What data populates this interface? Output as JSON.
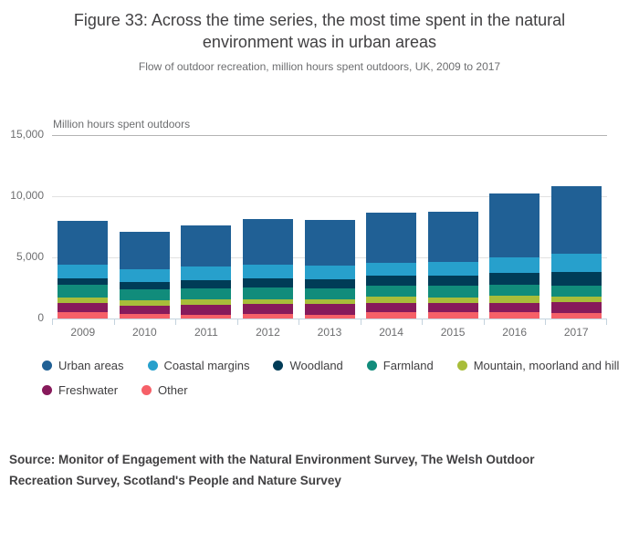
{
  "figure": {
    "title": "Figure 33: Across the time series, the most time spent in the natural environment was in urban areas",
    "subtitle": "Flow of outdoor recreation, million hours spent outdoors, UK, 2009 to 2017",
    "source": "Source: Monitor of Engagement with the Natural Environment Survey, The Welsh Outdoor Recreation Survey, Scotland's People and Nature Survey"
  },
  "chart_data": {
    "type": "bar",
    "stacked": true,
    "title": "Figure 33: Across the time series, the most time spent in the natural environment was in urban areas",
    "subtitle": "Flow of outdoor recreation, million hours spent outdoors, UK, 2009 to 2017",
    "unit_label": "Million hours spent outdoors",
    "categories": [
      "2009",
      "2010",
      "2011",
      "2012",
      "2013",
      "2014",
      "2015",
      "2016",
      "2017"
    ],
    "series": [
      {
        "name": "Urban areas",
        "color": "#206095",
        "values": [
          3600,
          3030,
          3360,
          3760,
          3740,
          4130,
          4130,
          5220,
          5570
        ]
      },
      {
        "name": "Coastal margins",
        "color": "#27a0cc",
        "values": [
          1120,
          1050,
          1070,
          1070,
          1090,
          1040,
          1090,
          1320,
          1500
        ]
      },
      {
        "name": "Woodland",
        "color": "#003c57",
        "values": [
          520,
          590,
          690,
          770,
          750,
          830,
          880,
          920,
          1120
        ]
      },
      {
        "name": "Farmland",
        "color": "#118c7b",
        "values": [
          1050,
          900,
          920,
          940,
          890,
          860,
          910,
          950,
          860
        ]
      },
      {
        "name": "Mountain, moorland and hill",
        "color": "#a8bd3a",
        "values": [
          450,
          450,
          420,
          380,
          430,
          500,
          450,
          540,
          450
        ]
      },
      {
        "name": "Freshwater",
        "color": "#871a5b",
        "values": [
          680,
          700,
          850,
          820,
          860,
          750,
          800,
          750,
          920
        ]
      },
      {
        "name": "Other",
        "color": "#f66068",
        "values": [
          520,
          320,
          250,
          370,
          280,
          520,
          470,
          520,
          400
        ]
      }
    ],
    "totals": [
      7940,
      7040,
      7560,
      8110,
      8040,
      8630,
      8730,
      10220,
      10820
    ],
    "stack_order_top_to_bottom": [
      "Urban areas",
      "Coastal margins",
      "Woodland",
      "Farmland",
      "Mountain, moorland and hill",
      "Freshwater",
      "Other"
    ],
    "y_axis": {
      "ticks": [
        "0",
        "5,000",
        "10,000",
        "15,000"
      ],
      "ylim": [
        0,
        15000
      ],
      "gridlines": true
    },
    "legend_position": "bottom"
  }
}
